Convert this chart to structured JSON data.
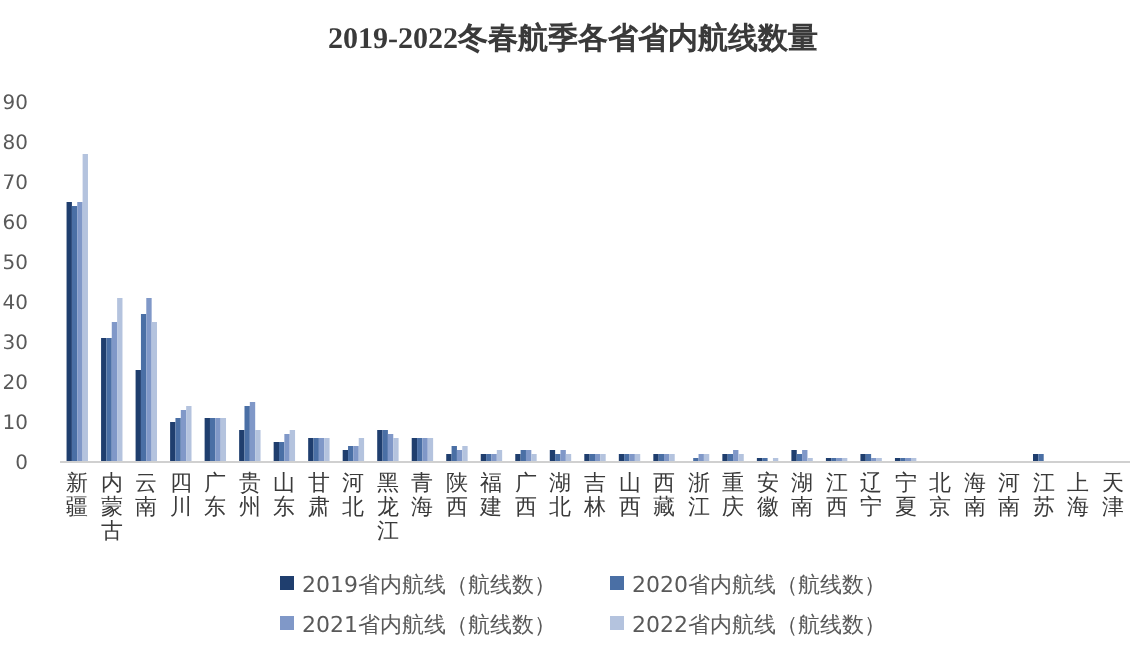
{
  "chart_data": {
    "type": "bar",
    "title": "2019-2022冬春航季各省省内航线数量",
    "categories": [
      "新疆",
      "内蒙古",
      "云南",
      "四川",
      "广东",
      "贵州",
      "山东",
      "甘肃",
      "河北",
      "黑龙江",
      "青海",
      "陕西",
      "福建",
      "广西",
      "湖北",
      "吉林",
      "山西",
      "西藏",
      "浙江",
      "重庆",
      "安徽",
      "湖南",
      "江西",
      "辽宁",
      "宁夏",
      "北京",
      "海南",
      "河南",
      "江苏",
      "上海",
      "天津"
    ],
    "series": [
      {
        "name": "2019省内航线（航线数）",
        "color": "#1f3e6e",
        "values": [
          65,
          31,
          23,
          10,
          11,
          8,
          5,
          6,
          3,
          8,
          6,
          2,
          2,
          2,
          3,
          2,
          2,
          2,
          0,
          2,
          1,
          3,
          1,
          2,
          1,
          0,
          0,
          0,
          2,
          0,
          0
        ]
      },
      {
        "name": "2020省内航线（航线数）",
        "color": "#4a6fa5",
        "values": [
          64,
          31,
          37,
          11,
          11,
          14,
          5,
          6,
          4,
          8,
          6,
          4,
          2,
          3,
          2,
          2,
          2,
          2,
          1,
          2,
          1,
          2,
          1,
          2,
          1,
          0,
          0,
          0,
          2,
          0,
          0
        ]
      },
      {
        "name": "2021省内航线（航线数）",
        "color": "#8098c8",
        "values": [
          65,
          35,
          41,
          13,
          11,
          15,
          7,
          6,
          4,
          7,
          6,
          3,
          2,
          3,
          3,
          2,
          2,
          2,
          2,
          3,
          0,
          3,
          1,
          1,
          1,
          0,
          0,
          0,
          0,
          0,
          0
        ]
      },
      {
        "name": "2022省内航线（航线数）",
        "color": "#b4c3de",
        "values": [
          77,
          41,
          35,
          14,
          11,
          8,
          8,
          6,
          6,
          6,
          6,
          4,
          3,
          2,
          2,
          2,
          2,
          2,
          2,
          2,
          1,
          1,
          1,
          1,
          1,
          0,
          0,
          0,
          0,
          0,
          0
        ]
      }
    ],
    "ylim": [
      0,
      90
    ],
    "yticks": [
      0,
      10,
      20,
      30,
      40,
      50,
      60,
      70,
      80,
      90
    ],
    "grid": false,
    "legend": "bottom"
  }
}
